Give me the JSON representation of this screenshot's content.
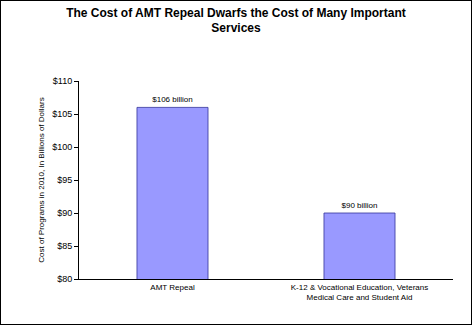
{
  "chart_data": {
    "type": "bar",
    "title": "The Cost of AMT Repeal Dwarfs the Cost of Many Important Services",
    "y_label": "Cost of Programs in 2010, In Billions of Dollars",
    "categories": [
      "AMT Repeal",
      "K-12 & Vocational Education, Veterans Medical Care and Student Aid"
    ],
    "values": [
      106,
      90
    ],
    "value_labels": [
      "$106 billion",
      "$90 billion"
    ],
    "data_labels": true,
    "color": "#9999ff",
    "ylim": [
      80,
      110
    ],
    "yticks": [
      {
        "value": 80,
        "label": "$80"
      },
      {
        "value": 85,
        "label": "$85"
      },
      {
        "value": 90,
        "label": "$90"
      },
      {
        "value": 95,
        "label": "$95"
      },
      {
        "value": 100,
        "label": "$100"
      },
      {
        "value": 105,
        "label": "$105"
      },
      {
        "value": 110,
        "label": "$110"
      }
    ],
    "grid": false
  }
}
